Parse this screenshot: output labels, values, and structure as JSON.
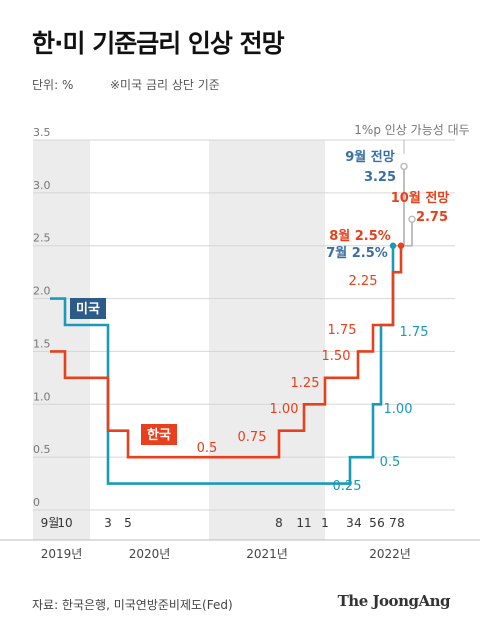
{
  "title": "한·미 기준금리 인상 전망",
  "unit_label": "단위: %",
  "note": "※미국 금리 상단 기준",
  "source": "자료: 한국은행, 미국연방준비제도(Fed)",
  "logo": "The JoongAng",
  "colors": {
    "usa": "#1a9ab9",
    "korea": "#e8401c",
    "usa_label_bg": "#2c5b8a",
    "usa_forecast": "#3a6fa3",
    "shade": "#ececec",
    "grid": "#d6d6d6",
    "forecast_line": "#b8b8b8"
  },
  "chart_data": {
    "type": "line",
    "step": true,
    "ylim": [
      0,
      3.5
    ],
    "y_ticks": [
      "0",
      "0.5",
      "1.0",
      "1.5",
      "2.0",
      "2.5",
      "3.0",
      "3.5"
    ],
    "x_month_ticks": [
      {
        "label": "9월",
        "year": 2019,
        "month": 9
      },
      {
        "label": "10",
        "year": 2019,
        "month": 10
      },
      {
        "label": "3",
        "year": 2020,
        "month": 3
      },
      {
        "label": "5",
        "year": 2020,
        "month": 5
      },
      {
        "label": "8",
        "year": 2021,
        "month": 8
      },
      {
        "label": "11",
        "year": 2021,
        "month": 11
      },
      {
        "label": "1",
        "year": 2022,
        "month": 1
      },
      {
        "label": "3",
        "year": 2022,
        "month": 3
      },
      {
        "label": "4",
        "year": 2022,
        "month": 4
      },
      {
        "label": "5",
        "year": 2022,
        "month": 5
      },
      {
        "label": "6",
        "year": 2022,
        "month": 6
      },
      {
        "label": "7",
        "year": 2022,
        "month": 7
      },
      {
        "label": "8",
        "year": 2022,
        "month": 8
      }
    ],
    "years": [
      {
        "label": "2019년",
        "year": 2019
      },
      {
        "label": "2020년",
        "year": 2020
      },
      {
        "label": "2021년",
        "year": 2021
      },
      {
        "label": "2022년",
        "year": 2022
      }
    ],
    "series": [
      {
        "name": "미국",
        "color_key": "usa",
        "points": [
          {
            "x": "2019-09",
            "y": 2.0
          },
          {
            "x": "2019-10",
            "y": 1.75
          },
          {
            "x": "2020-03",
            "y": 0.25
          },
          {
            "x": "2022-03",
            "y": 0.5
          },
          {
            "x": "2022-05",
            "y": 1.0
          },
          {
            "x": "2022-06",
            "y": 1.75
          },
          {
            "x": "2022-07",
            "y": 2.5
          }
        ],
        "labels": [
          {
            "text": "1.75",
            "x": "2022-07",
            "y": 1.75
          },
          {
            "text": "1.00",
            "x": "2022-05",
            "y": 1.0
          },
          {
            "text": "0.5",
            "x": "2022-05",
            "y": 0.5
          },
          {
            "text": "0.25",
            "x": "2022-03",
            "y": 0.25
          }
        ],
        "forecast": {
          "x": "2022-09",
          "y": 3.25,
          "label": "9월 전망",
          "value_label": "3.25"
        },
        "end_label": "7월 2.5%"
      },
      {
        "name": "한국",
        "color_key": "korea",
        "points": [
          {
            "x": "2019-09",
            "y": 1.5
          },
          {
            "x": "2019-10",
            "y": 1.25
          },
          {
            "x": "2020-03",
            "y": 0.75
          },
          {
            "x": "2020-05",
            "y": 0.5
          },
          {
            "x": "2021-08",
            "y": 0.75
          },
          {
            "x": "2021-11",
            "y": 1.0
          },
          {
            "x": "2022-01",
            "y": 1.25
          },
          {
            "x": "2022-04",
            "y": 1.5
          },
          {
            "x": "2022-05",
            "y": 1.75
          },
          {
            "x": "2022-07",
            "y": 2.25
          },
          {
            "x": "2022-08",
            "y": 2.5
          }
        ],
        "labels": [
          {
            "text": "0.5",
            "x": "2021-01",
            "y": 0.5
          },
          {
            "text": "0.75",
            "x": "2021-05",
            "y": 0.75
          },
          {
            "text": "1.00",
            "x": "2021-08",
            "y": 1.0
          },
          {
            "text": "1.25",
            "x": "2021-10",
            "y": 1.25
          },
          {
            "text": "1.50",
            "x": "2022-01",
            "y": 1.5
          },
          {
            "text": "1.75",
            "x": "2022-02",
            "y": 1.75
          },
          {
            "text": "2.25",
            "x": "2022-04",
            "y": 2.25
          }
        ],
        "forecast": {
          "x": "2022-10",
          "y": 2.75,
          "label": "10월 전망",
          "value_label": "2.75"
        },
        "end_label": "8월 2.5%"
      }
    ],
    "annotation": "1%p 인상 가능성 대두"
  }
}
